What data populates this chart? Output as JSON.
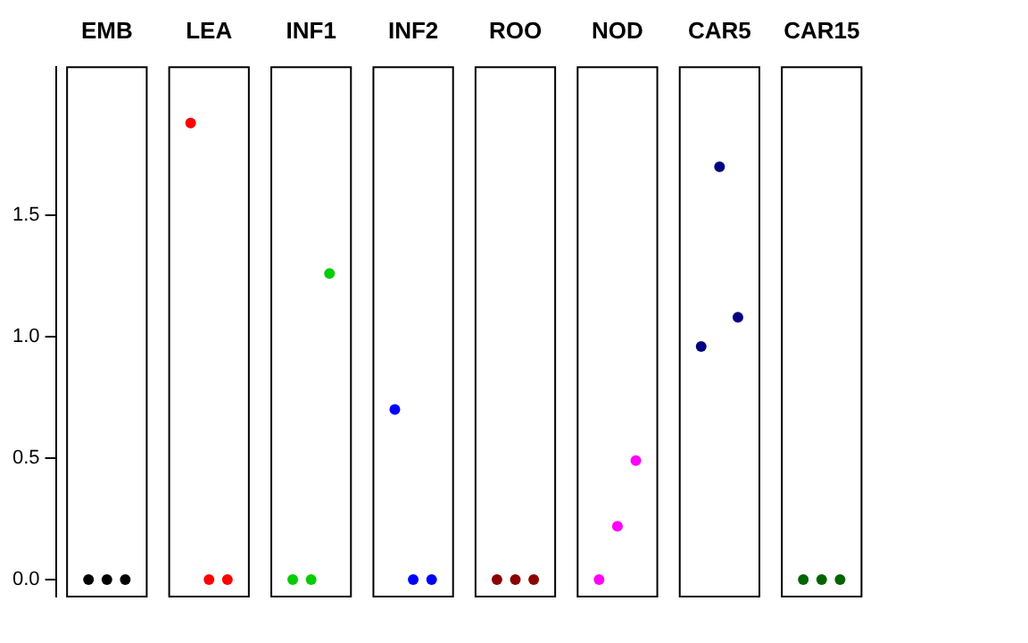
{
  "chart_data": {
    "type": "scatter",
    "categories": [
      "EMB",
      "LEA",
      "INF1",
      "INF2",
      "ROO",
      "NOD",
      "CAR5",
      "CAR15"
    ],
    "series": [
      {
        "values": [
          0,
          1.88,
          0,
          0.7,
          0,
          0,
          0.96,
          0
        ],
        "colors": [
          "#000000",
          "#ff0000",
          "#00cd00",
          "#0000ff",
          "#8b0000",
          "#ff00ff",
          "#000080",
          "#006400"
        ]
      },
      {
        "values": [
          0,
          0,
          0,
          0,
          0,
          0.22,
          1.7,
          0
        ],
        "colors": [
          "#000000",
          "#ff0000",
          "#00cd00",
          "#0000ff",
          "#8b0000",
          "#ff00ff",
          "#000080",
          "#006400"
        ]
      },
      {
        "values": [
          0,
          0,
          1.26,
          0,
          0,
          0.49,
          1.08,
          0
        ],
        "colors": [
          "#000000",
          "#ff0000",
          "#00cd00",
          "#0000ff",
          "#8b0000",
          "#ff00ff",
          "#000080",
          "#006400"
        ]
      }
    ],
    "ylim": [
      -0.07,
      2.11
    ],
    "yticks": [
      {
        "value": 0,
        "label": "0.0"
      },
      {
        "value": 0.5,
        "label": "0.5"
      },
      {
        "value": 1,
        "label": "1.0"
      },
      {
        "value": 1.5,
        "label": "1.5"
      }
    ],
    "marker": "circle",
    "grid": false,
    "legend": false
  }
}
